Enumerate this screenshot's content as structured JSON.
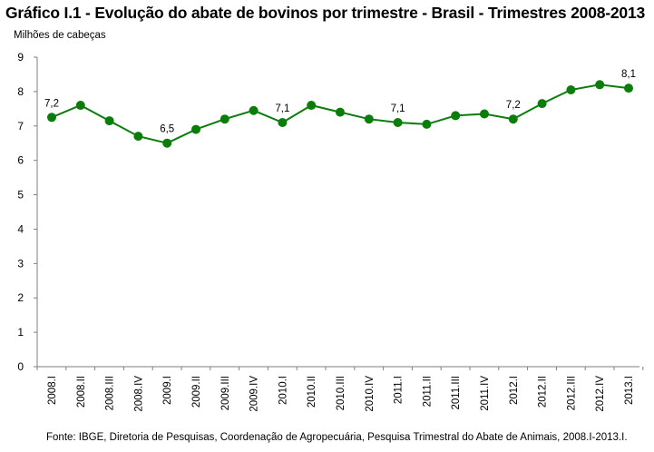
{
  "title": "Gráfico I.1 - Evolução do abate de bovinos por trimestre - Brasil - Trimestres 2008-2013",
  "source": "Fonte: IBGE, Diretoria de Pesquisas, Coordenação de Agropecuária, Pesquisa Trimestral do Abate de Animais, 2008.I-2013.I.",
  "chart_data": {
    "type": "line",
    "title": "Gráfico I.1 - Evolução do abate de bovinos por trimestre - Brasil - Trimestres 2008-2013",
    "xlabel": "",
    "ylabel": "Milhões de cabeças",
    "ylim": [
      0,
      9
    ],
    "yticks": [
      "0",
      "1",
      "2",
      "3",
      "4",
      "5",
      "6",
      "7",
      "8",
      "9"
    ],
    "grid": false,
    "legend": "none",
    "color": "#0a7d0a",
    "categories": [
      "2008.I",
      "2008.II",
      "2008.III",
      "2008.IV",
      "2009.I",
      "2009.II",
      "2009.III",
      "2009.IV",
      "2010.I",
      "2010.II",
      "2010.III",
      "2010.IV",
      "2011.I",
      "2011.II",
      "2011.III",
      "2011.IV",
      "2012.I",
      "2012.II",
      "2012.III",
      "2012.IV",
      "2013.I"
    ],
    "series": [
      {
        "name": "Abate de bovinos",
        "values": [
          7.25,
          7.6,
          7.15,
          6.7,
          6.5,
          6.9,
          7.2,
          7.45,
          7.1,
          7.6,
          7.4,
          7.2,
          7.1,
          7.05,
          7.3,
          7.35,
          7.2,
          7.65,
          8.05,
          8.2,
          8.1
        ]
      }
    ],
    "annotations": [
      {
        "index": 0,
        "text": "7,2"
      },
      {
        "index": 4,
        "text": "6,5"
      },
      {
        "index": 8,
        "text": "7,1"
      },
      {
        "index": 12,
        "text": "7,1"
      },
      {
        "index": 16,
        "text": "7,2"
      },
      {
        "index": 20,
        "text": "8,1"
      }
    ]
  }
}
